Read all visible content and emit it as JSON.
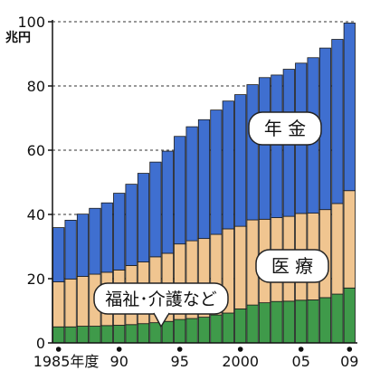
{
  "chart_data": {
    "type": "bar",
    "stacked": true,
    "ylabel": "兆円",
    "ylim": [
      0,
      100
    ],
    "yticks": [
      "0",
      "20",
      "40",
      "60",
      "80",
      "100"
    ],
    "x": [
      1985,
      1986,
      1987,
      1988,
      1989,
      1990,
      1991,
      1992,
      1993,
      1994,
      1995,
      1996,
      1997,
      1998,
      1999,
      2000,
      2001,
      2002,
      2003,
      2004,
      2005,
      2006,
      2007,
      2008,
      2009
    ],
    "xtick_labels": [
      {
        "year": 1985,
        "label": "1985年度"
      },
      {
        "year": 1990,
        "label": "90"
      },
      {
        "year": 1995,
        "label": "95"
      },
      {
        "year": 2000,
        "label": "2000"
      },
      {
        "year": 2005,
        "label": "05"
      },
      {
        "year": 2009,
        "label": "09"
      }
    ],
    "series": [
      {
        "name": "福祉･介護など",
        "color": "#3f9a4a",
        "values": [
          5.0,
          5.0,
          5.2,
          5.2,
          5.4,
          5.5,
          5.7,
          6.0,
          6.3,
          6.7,
          7.3,
          7.6,
          8.0,
          8.7,
          9.3,
          10.6,
          11.8,
          12.5,
          12.9,
          13.0,
          13.3,
          13.4,
          14.1,
          15.2,
          17.1
        ]
      },
      {
        "name": "医療",
        "color": "#f0c590",
        "values": [
          14.0,
          14.9,
          15.5,
          16.2,
          16.6,
          17.2,
          18.4,
          19.2,
          20.5,
          21.2,
          23.5,
          24.2,
          24.5,
          25.1,
          26.2,
          25.7,
          26.5,
          26.0,
          26.1,
          26.4,
          27.0,
          27.0,
          27.4,
          28.2,
          30.3
        ]
      },
      {
        "name": "年金",
        "color": "#3f6fd0",
        "values": [
          16.9,
          18.3,
          19.4,
          20.5,
          21.6,
          23.9,
          25.3,
          27.6,
          29.5,
          31.8,
          33.5,
          35.5,
          37.0,
          38.7,
          39.8,
          41.0,
          42.1,
          44.1,
          44.4,
          45.8,
          46.8,
          48.4,
          50.3,
          51.1,
          52.2
        ]
      }
    ],
    "annotations": [
      {
        "text": "年 金",
        "series": "年金"
      },
      {
        "text": "医 療",
        "series": "医療"
      },
      {
        "text": "福祉･介護など",
        "series": "福祉･介護など"
      }
    ],
    "grid": "horizontal"
  }
}
